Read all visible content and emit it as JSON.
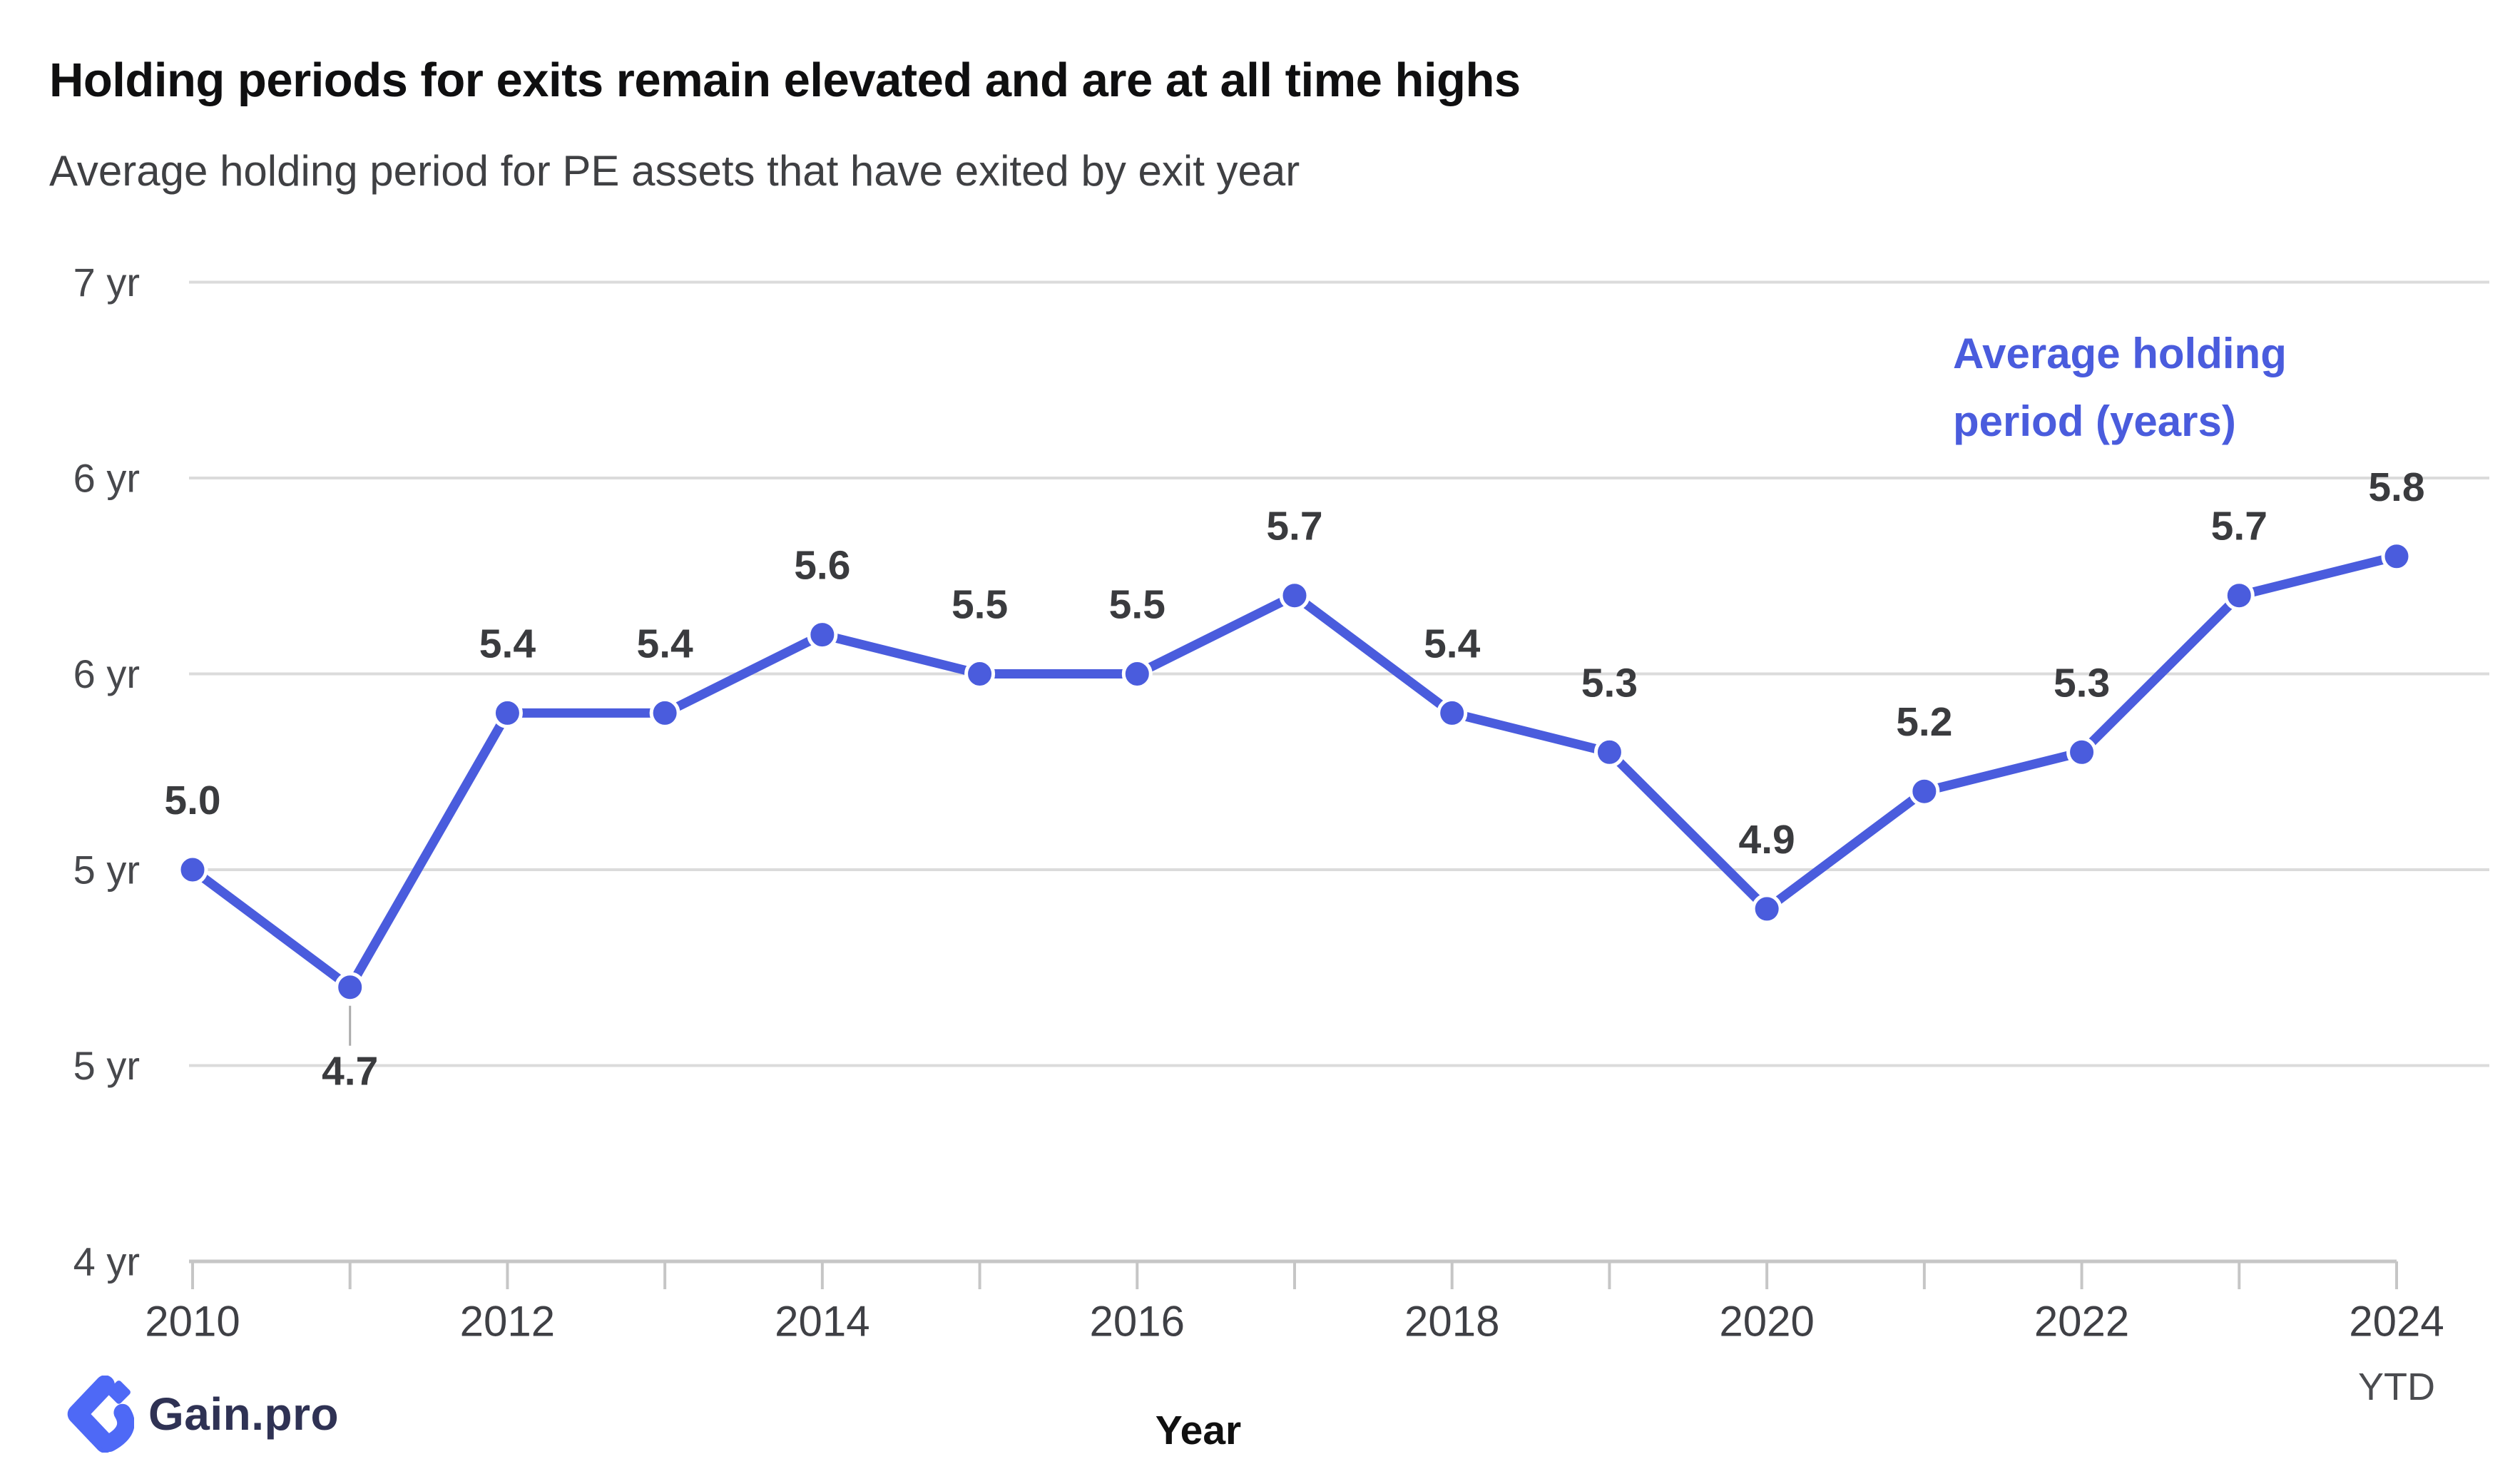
{
  "header": {
    "title": "Holding periods for exits remain elevated and are at all time highs",
    "subtitle": "Average holding period for PE assets that have exited by exit year"
  },
  "chart_data": {
    "type": "line",
    "title": "Holding periods for exits remain elevated and are at all time highs",
    "subtitle": "Average holding period for PE assets that have exited by exit year",
    "xlabel": "Year",
    "x": [
      2010,
      2011,
      2012,
      2013,
      2014,
      2015,
      2016,
      2017,
      2018,
      2019,
      2020,
      2021,
      2022,
      2023,
      2024
    ],
    "series": [
      {
        "name": "Average holding period (years)",
        "values": [
          5.0,
          4.7,
          5.4,
          5.4,
          5.6,
          5.5,
          5.5,
          5.7,
          5.4,
          5.3,
          4.9,
          5.2,
          5.3,
          5.7,
          5.8
        ],
        "point_labels": [
          "5.0",
          "4.7",
          "5.4",
          "5.4",
          "5.6",
          "5.5",
          "5.5",
          "5.7",
          "5.4",
          "5.3",
          "4.9",
          "5.2",
          "5.3",
          "5.7",
          "5.8"
        ]
      }
    ],
    "legend_lines": [
      "Average holding",
      "period (years)"
    ],
    "legend_position": "top-right",
    "x_tick_labels": [
      "2010",
      "2012",
      "2014",
      "2016",
      "2018",
      "2020",
      "2022",
      "2024"
    ],
    "x_last_tick_note": "YTD",
    "y_gridlines": [
      {
        "value": 6.5,
        "label": "7 yr"
      },
      {
        "value": 6.0,
        "label": "6 yr"
      },
      {
        "value": 5.5,
        "label": "6 yr"
      },
      {
        "value": 5.0,
        "label": "5 yr"
      },
      {
        "value": 4.5,
        "label": "5 yr"
      },
      {
        "value": 4.0,
        "label": "4 yr"
      }
    ],
    "ylim": [
      4.0,
      6.5
    ],
    "grid": true,
    "line_color": "#4a5cdd",
    "label_color": "#3a3b3e",
    "axis_text_color": "#47484c",
    "grid_color": "#dbdbdb",
    "axis_line_color": "#c6c6c6"
  },
  "footer": {
    "logo_text": "Gain.pro"
  }
}
